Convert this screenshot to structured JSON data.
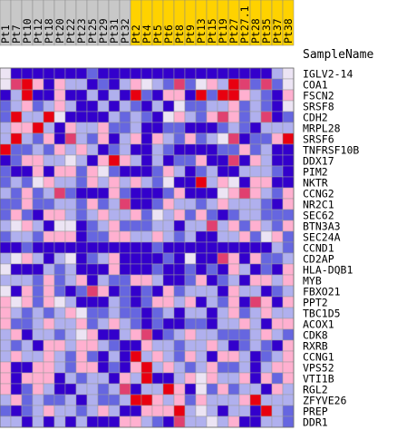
{
  "chart_data": {
    "type": "heatmap",
    "column_header_label": "SampleName",
    "group_colors": {
      "a": "#c8c8c8",
      "b": "#ffd200"
    },
    "samples": [
      {
        "name": "Pt1",
        "group": "a"
      },
      {
        "name": "Pt7",
        "group": "a"
      },
      {
        "name": "Pt10",
        "group": "a"
      },
      {
        "name": "Pt12",
        "group": "a"
      },
      {
        "name": "Pt18",
        "group": "a"
      },
      {
        "name": "Pt20",
        "group": "a"
      },
      {
        "name": "Pt22",
        "group": "a"
      },
      {
        "name": "Pt23",
        "group": "a"
      },
      {
        "name": "Pt25",
        "group": "a"
      },
      {
        "name": "Pt29",
        "group": "a"
      },
      {
        "name": "Pt31",
        "group": "a"
      },
      {
        "name": "Pt32",
        "group": "a"
      },
      {
        "name": "Pt2",
        "group": "b"
      },
      {
        "name": "Pt4",
        "group": "b"
      },
      {
        "name": "Pt5",
        "group": "b"
      },
      {
        "name": "Pt6",
        "group": "b"
      },
      {
        "name": "Pt8",
        "group": "b"
      },
      {
        "name": "Pt9",
        "group": "b"
      },
      {
        "name": "Pt13",
        "group": "b"
      },
      {
        "name": "Pt15",
        "group": "b"
      },
      {
        "name": "Pt19",
        "group": "b"
      },
      {
        "name": "Pt27",
        "group": "b"
      },
      {
        "name": "Pt27.1",
        "group": "b"
      },
      {
        "name": "Pt28",
        "group": "b"
      },
      {
        "name": "Pt35",
        "group": "b"
      },
      {
        "name": "Pt37",
        "group": "b"
      },
      {
        "name": "Pt38",
        "group": "b"
      }
    ],
    "genes": [
      "IGLV2-14",
      "COA1",
      "FSCN2",
      "SRSF8",
      "CDH2",
      "MRPL28",
      "SRSF6",
      "TNFRSF10B",
      "DDX17",
      "PIM2",
      "NKTR",
      "CCNG2",
      "NR2C1",
      "SEC62",
      "BTN3A3",
      "SEC24A",
      "CCND1",
      "CD2AP",
      "HLA-DQB1",
      "MYB",
      "FBXO21",
      "PPT2",
      "TBC1D5",
      "ACOX1",
      "CDK8",
      "RXRB",
      "CCNG1",
      "VPS52",
      "VTI1B",
      "RGL2",
      "ZFYVE26",
      "PREP",
      "DDR1"
    ],
    "color_scale": {
      "-3": "#3300cc",
      "-2": "#6666e0",
      "-1": "#b0b0ee",
      "0": "#ece4f4",
      "1": "#ffb0d0",
      "2": "#e04070",
      "3": "#e80010"
    },
    "values": [
      [
        0,
        -3,
        -3,
        -3,
        -3,
        -3,
        -3,
        -3,
        -2,
        -3,
        -3,
        -3,
        -3,
        -3,
        -3,
        -3,
        -3,
        -3,
        -3,
        -3,
        -3,
        -3,
        -3,
        -3,
        -3,
        -1,
        0
      ],
      [
        0,
        2,
        3,
        1,
        -3,
        1,
        -1,
        -1,
        -3,
        -2,
        -3,
        -1,
        1,
        0,
        -1,
        -2,
        2,
        -2,
        0,
        1,
        -1,
        3,
        2,
        -2,
        2,
        -2,
        0
      ],
      [
        -3,
        -1,
        3,
        -3,
        -3,
        1,
        -3,
        -3,
        -1,
        -3,
        -1,
        -3,
        3,
        -2,
        -3,
        1,
        1,
        -3,
        3,
        -2,
        3,
        3,
        1,
        -1,
        -2,
        -3,
        1
      ],
      [
        -2,
        -1,
        1,
        -2,
        -1,
        1,
        -1,
        -3,
        -3,
        -1,
        -3,
        -1,
        -2,
        -3,
        -1,
        -3,
        0,
        -2,
        -2,
        -1,
        -1,
        1,
        -2,
        -1,
        -2,
        -3,
        0
      ],
      [
        -2,
        3,
        -1,
        -1,
        3,
        0,
        -3,
        -3,
        -3,
        -3,
        -1,
        -2,
        -1,
        -2,
        -3,
        0,
        1,
        -1,
        -2,
        1,
        2,
        1,
        -2,
        -1,
        2,
        -3,
        -2
      ],
      [
        -1,
        1,
        1,
        3,
        -1,
        -3,
        1,
        -1,
        -1,
        1,
        -2,
        -2,
        -1,
        -3,
        -3,
        -2,
        -2,
        -3,
        -3,
        -3,
        -2,
        -1,
        -2,
        -3,
        -1,
        -1,
        -1
      ],
      [
        -1,
        3,
        -1,
        -2,
        1,
        -3,
        2,
        -1,
        -2,
        1,
        -3,
        -1,
        1,
        -3,
        1,
        -1,
        -2,
        1,
        -2,
        -1,
        0,
        2,
        -3,
        -2,
        -2,
        1,
        3
      ],
      [
        3,
        -2,
        -2,
        -1,
        -2,
        1,
        -1,
        1,
        -1,
        -3,
        -2,
        -1,
        -3,
        -3,
        -1,
        -2,
        -3,
        -3,
        -3,
        -3,
        -2,
        -2,
        1,
        -2,
        -1,
        -3,
        -3
      ],
      [
        -3,
        -2,
        1,
        1,
        -1,
        -1,
        0,
        -1,
        -3,
        1,
        3,
        1,
        -1,
        -3,
        -1,
        -3,
        -2,
        -2,
        1,
        -3,
        -3,
        2,
        -3,
        1,
        -1,
        -3,
        -3
      ],
      [
        -2,
        -3,
        -3,
        1,
        -3,
        1,
        1,
        -2,
        1,
        0,
        -2,
        -3,
        -3,
        -3,
        -2,
        1,
        -1,
        -3,
        -2,
        -1,
        -3,
        -3,
        -1,
        -1,
        -1,
        -2,
        -3
      ],
      [
        -2,
        -1,
        -2,
        0,
        1,
        -1,
        -1,
        -2,
        1,
        -1,
        1,
        -1,
        1,
        -1,
        -2,
        0,
        -3,
        -3,
        3,
        -1,
        1,
        0,
        -3,
        1,
        1,
        -3,
        -3
      ],
      [
        -1,
        -2,
        1,
        -2,
        -1,
        2,
        -2,
        -3,
        -3,
        -3,
        1,
        -2,
        -3,
        -3,
        -3,
        -2,
        1,
        -3,
        -3,
        -3,
        0,
        1,
        2,
        1,
        -1,
        -2,
        1
      ],
      [
        -2,
        -2,
        1,
        -2,
        -2,
        -1,
        -1,
        -2,
        1,
        -2,
        -1,
        2,
        -3,
        -3,
        -2,
        1,
        -1,
        -1,
        -2,
        -1,
        1,
        -1,
        -1,
        -1,
        -2,
        -3,
        1
      ],
      [
        -2,
        1,
        -2,
        -3,
        1,
        1,
        -1,
        -2,
        -1,
        1,
        -1,
        -1,
        1,
        -2,
        0,
        -1,
        1,
        -2,
        1,
        -2,
        -3,
        -2,
        -1,
        -1,
        -2,
        -2,
        -2
      ],
      [
        -1,
        0,
        1,
        -1,
        -3,
        0,
        0,
        -3,
        -2,
        -1,
        1,
        -2,
        -2,
        -2,
        -1,
        -1,
        -3,
        -1,
        -1,
        2,
        -1,
        1,
        -2,
        1,
        -1,
        -2,
        1
      ],
      [
        -2,
        -1,
        -1,
        -2,
        1,
        1,
        1,
        -3,
        -2,
        -2,
        1,
        1,
        -1,
        -1,
        1,
        -1,
        -2,
        -1,
        -3,
        -3,
        -1,
        -1,
        1,
        -2,
        0,
        1,
        -2
      ],
      [
        -3,
        -3,
        -2,
        -3,
        -3,
        -3,
        -3,
        -3,
        -3,
        -3,
        -3,
        -3,
        -3,
        -3,
        -2,
        -3,
        -3,
        -3,
        -3,
        -3,
        -3,
        -3,
        -3,
        -3,
        -3,
        -1,
        -2
      ],
      [
        -1,
        0,
        1,
        -1,
        -3,
        -1,
        0,
        -3,
        -2,
        -1,
        1,
        -3,
        -3,
        -3,
        -3,
        -2,
        -3,
        0,
        -3,
        -3,
        2,
        1,
        -3,
        1,
        -2,
        -2,
        -1
      ],
      [
        0,
        -3,
        -3,
        -3,
        -1,
        -2,
        -1,
        -3,
        -3,
        -3,
        1,
        -3,
        -3,
        -3,
        -2,
        -3,
        -3,
        -2,
        -3,
        -2,
        -3,
        1,
        -1,
        -3,
        -2,
        -3,
        1
      ],
      [
        -1,
        -1,
        -1,
        -2,
        1,
        -2,
        -1,
        1,
        -3,
        -1,
        -2,
        -2,
        1,
        1,
        -1,
        -3,
        -3,
        -2,
        1,
        -3,
        -2,
        -1,
        -3,
        1,
        1,
        -1,
        1
      ],
      [
        0,
        -3,
        1,
        -2,
        1,
        -2,
        -3,
        -2,
        2,
        1,
        -3,
        -2,
        -3,
        -2,
        -3,
        1,
        -2,
        -1,
        -1,
        -1,
        -3,
        1,
        -1,
        -1,
        -3,
        -2,
        -1
      ],
      [
        1,
        0,
        1,
        -2,
        1,
        0,
        -1,
        -3,
        -3,
        -3,
        -1,
        -2,
        -3,
        -2,
        1,
        1,
        -1,
        1,
        -3,
        -1,
        -2,
        1,
        -3,
        2,
        1,
        -3,
        1
      ],
      [
        1,
        -1,
        -2,
        -1,
        -2,
        -1,
        1,
        0,
        -2,
        -2,
        -1,
        -2,
        -2,
        -3,
        -2,
        -1,
        -3,
        -1,
        -1,
        -3,
        -1,
        1,
        -2,
        -1,
        1,
        -1,
        -1
      ],
      [
        1,
        -2,
        -2,
        -1,
        1,
        -1,
        -1,
        1,
        -2,
        -1,
        1,
        -1,
        -2,
        -3,
        -2,
        -3,
        -3,
        -2,
        -2,
        -3,
        -1,
        -1,
        1,
        -1,
        -3,
        1,
        1
      ],
      [
        -1,
        1,
        -3,
        -1,
        -1,
        -2,
        -1,
        0,
        1,
        -3,
        -3,
        -1,
        1,
        2,
        -3,
        -2,
        -1,
        1,
        -1,
        -1,
        -2,
        -2,
        -2,
        -1,
        1,
        -1,
        -2
      ],
      [
        -1,
        -2,
        -1,
        -3,
        1,
        1,
        -1,
        1,
        1,
        -1,
        -2,
        -3,
        -3,
        1,
        -1,
        -1,
        -2,
        -1,
        -1,
        1,
        -1,
        -3,
        -2,
        -1,
        -2,
        -3,
        1
      ],
      [
        -1,
        1,
        -1,
        -1,
        1,
        -1,
        -2,
        1,
        -2,
        -3,
        -1,
        -3,
        3,
        -1,
        1,
        -1,
        -2,
        1,
        -1,
        -3,
        1,
        1,
        -1,
        -3,
        -2,
        -1,
        1
      ],
      [
        1,
        -3,
        -3,
        1,
        1,
        -1,
        -2,
        1,
        1,
        -3,
        -2,
        -3,
        1,
        3,
        -1,
        1,
        -1,
        -2,
        -1,
        1,
        -2,
        -2,
        -1,
        -3,
        -1,
        1,
        1
      ],
      [
        1,
        -3,
        1,
        1,
        1,
        -3,
        -1,
        -2,
        -1,
        -1,
        -3,
        1,
        -1,
        3,
        -3,
        -3,
        -1,
        1,
        0,
        1,
        -1,
        -1,
        1,
        -3,
        1,
        -2,
        1
      ],
      [
        1,
        -3,
        -2,
        1,
        -1,
        -3,
        -3,
        -1,
        -1,
        -2,
        -1,
        2,
        -3,
        -1,
        -1,
        3,
        1,
        -3,
        0,
        -2,
        1,
        -2,
        -1,
        -1,
        -3,
        1,
        -1
      ],
      [
        -1,
        1,
        -2,
        -1,
        -2,
        -2,
        -1,
        -3,
        -1,
        -2,
        -2,
        -1,
        3,
        3,
        1,
        -1,
        1,
        -2,
        1,
        -1,
        -1,
        -1,
        1,
        3,
        -1,
        -1,
        -1
      ],
      [
        -2,
        -3,
        -2,
        -1,
        1,
        -1,
        -1,
        -2,
        -1,
        1,
        -1,
        -3,
        -3,
        1,
        1,
        1,
        3,
        -1,
        0,
        -1,
        -3,
        -1,
        -1,
        -3,
        3,
        -1,
        -2
      ],
      [
        -1,
        -1,
        -3,
        -1,
        -3,
        -1,
        -3,
        -1,
        -3,
        -3,
        -3,
        1,
        1,
        -1,
        -2,
        -3,
        2,
        -1,
        -1,
        0,
        -1,
        1,
        -3,
        -3,
        -1,
        -1,
        -2
      ]
    ]
  }
}
